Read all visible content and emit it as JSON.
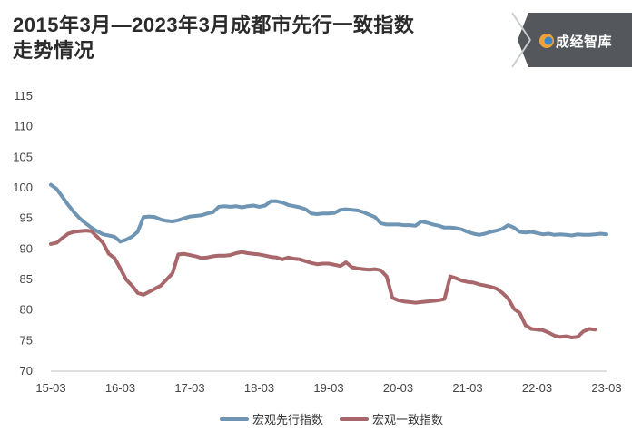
{
  "title_line1": "2015年3月—2023年3月成都市先行一致指数",
  "title_line2": "走势情况",
  "logo_text": "成经智库",
  "colors": {
    "leading": "#6e95b3",
    "coincident": "#a8676a",
    "logo_bg": "#54585c",
    "axis": "#bfbfbf"
  },
  "chart_data": {
    "type": "line",
    "title": "2015年3月—2023年3月成都市先行一致指数走势情况",
    "xlabel": "",
    "ylabel": "",
    "x_ticks": [
      "15-03",
      "16-03",
      "17-03",
      "18-03",
      "19-03",
      "20-03",
      "21-03",
      "22-03",
      "23-03"
    ],
    "y_ticks": [
      70,
      75,
      80,
      85,
      90,
      95,
      100,
      105,
      110,
      115
    ],
    "ylim": [
      70,
      115
    ],
    "xlim": [
      0,
      96
    ],
    "x_unit": "months since 2015-03",
    "grid": false,
    "legend_position": "bottom",
    "series": [
      {
        "name": "宏观先行指数",
        "color": "#6e95b3",
        "points": [
          [
            0,
            100.5
          ],
          [
            1,
            99.8
          ],
          [
            2,
            98.5
          ],
          [
            3,
            97.2
          ],
          [
            4,
            96.0
          ],
          [
            5,
            95.0
          ],
          [
            6,
            94.2
          ],
          [
            7,
            93.5
          ],
          [
            8,
            92.9
          ],
          [
            9,
            92.4
          ],
          [
            10,
            92.2
          ],
          [
            11,
            92.0
          ],
          [
            12,
            91.2
          ],
          [
            13,
            91.5
          ],
          [
            14,
            92.0
          ],
          [
            15,
            92.8
          ],
          [
            16,
            95.2
          ],
          [
            17,
            95.3
          ],
          [
            18,
            95.2
          ],
          [
            19,
            94.8
          ],
          [
            20,
            94.6
          ],
          [
            21,
            94.5
          ],
          [
            22,
            94.7
          ],
          [
            23,
            95.0
          ],
          [
            24,
            95.3
          ],
          [
            25,
            95.4
          ],
          [
            26,
            95.5
          ],
          [
            27,
            95.8
          ],
          [
            28,
            96.0
          ],
          [
            29,
            96.9
          ],
          [
            30,
            97.0
          ],
          [
            31,
            96.9
          ],
          [
            32,
            97.0
          ],
          [
            33,
            96.8
          ],
          [
            34,
            97.0
          ],
          [
            35,
            97.1
          ],
          [
            36,
            96.9
          ],
          [
            37,
            97.1
          ],
          [
            38,
            97.8
          ],
          [
            39,
            97.8
          ],
          [
            40,
            97.6
          ],
          [
            41,
            97.2
          ],
          [
            42,
            97.0
          ],
          [
            43,
            96.8
          ],
          [
            44,
            96.5
          ],
          [
            45,
            95.8
          ],
          [
            46,
            95.7
          ],
          [
            47,
            95.8
          ],
          [
            48,
            95.8
          ],
          [
            49,
            95.9
          ],
          [
            50,
            96.4
          ],
          [
            51,
            96.5
          ],
          [
            52,
            96.4
          ],
          [
            53,
            96.3
          ],
          [
            54,
            96.0
          ],
          [
            55,
            95.6
          ],
          [
            56,
            95.2
          ],
          [
            57,
            94.2
          ],
          [
            58,
            94.0
          ],
          [
            59,
            94.0
          ],
          [
            60,
            94.0
          ],
          [
            61,
            93.9
          ],
          [
            62,
            93.9
          ],
          [
            63,
            93.8
          ],
          [
            64,
            94.5
          ],
          [
            65,
            94.3
          ],
          [
            66,
            94.0
          ],
          [
            67,
            93.8
          ],
          [
            68,
            93.5
          ],
          [
            69,
            93.5
          ],
          [
            70,
            93.4
          ],
          [
            71,
            93.2
          ],
          [
            72,
            92.8
          ],
          [
            73,
            92.5
          ],
          [
            74,
            92.3
          ],
          [
            75,
            92.5
          ],
          [
            76,
            92.8
          ],
          [
            77,
            93.0
          ],
          [
            78,
            93.3
          ],
          [
            79,
            93.9
          ],
          [
            80,
            93.5
          ],
          [
            81,
            92.8
          ],
          [
            82,
            92.7
          ],
          [
            83,
            92.8
          ],
          [
            84,
            92.6
          ],
          [
            85,
            92.4
          ],
          [
            86,
            92.5
          ],
          [
            87,
            92.3
          ],
          [
            88,
            92.4
          ],
          [
            89,
            92.3
          ],
          [
            90,
            92.2
          ],
          [
            91,
            92.4
          ],
          [
            92,
            92.3
          ],
          [
            93,
            92.3
          ],
          [
            94,
            92.4
          ],
          [
            95,
            92.5
          ],
          [
            96,
            92.4
          ]
        ]
      },
      {
        "name": "宏观一致指数",
        "color": "#a8676a",
        "points": [
          [
            0,
            90.8
          ],
          [
            1,
            91.0
          ],
          [
            2,
            91.8
          ],
          [
            3,
            92.5
          ],
          [
            4,
            92.8
          ],
          [
            5,
            92.9
          ],
          [
            6,
            93.0
          ],
          [
            7,
            92.9
          ],
          [
            8,
            92.0
          ],
          [
            9,
            91.0
          ],
          [
            10,
            89.2
          ],
          [
            11,
            88.5
          ],
          [
            12,
            86.8
          ],
          [
            13,
            85.0
          ],
          [
            14,
            84.0
          ],
          [
            15,
            82.8
          ],
          [
            16,
            82.5
          ],
          [
            17,
            83.0
          ],
          [
            18,
            83.5
          ],
          [
            19,
            84.0
          ],
          [
            20,
            85.0
          ],
          [
            21,
            86.0
          ],
          [
            22,
            89.1
          ],
          [
            23,
            89.2
          ],
          [
            24,
            89.0
          ],
          [
            25,
            88.8
          ],
          [
            26,
            88.5
          ],
          [
            27,
            88.6
          ],
          [
            28,
            88.8
          ],
          [
            29,
            88.9
          ],
          [
            30,
            88.9
          ],
          [
            31,
            89.0
          ],
          [
            32,
            89.3
          ],
          [
            33,
            89.5
          ],
          [
            34,
            89.3
          ],
          [
            35,
            89.2
          ],
          [
            36,
            89.1
          ],
          [
            37,
            88.9
          ],
          [
            38,
            88.7
          ],
          [
            39,
            88.6
          ],
          [
            40,
            88.3
          ],
          [
            41,
            88.6
          ],
          [
            42,
            88.4
          ],
          [
            43,
            88.3
          ],
          [
            44,
            88.0
          ],
          [
            45,
            87.7
          ],
          [
            46,
            87.5
          ],
          [
            47,
            87.6
          ],
          [
            48,
            87.6
          ],
          [
            49,
            87.4
          ],
          [
            50,
            87.2
          ],
          [
            51,
            87.8
          ],
          [
            52,
            87.0
          ],
          [
            53,
            86.8
          ],
          [
            54,
            86.7
          ],
          [
            55,
            86.6
          ],
          [
            56,
            86.7
          ],
          [
            57,
            86.5
          ],
          [
            58,
            85.5
          ],
          [
            59,
            82.0
          ],
          [
            60,
            81.6
          ],
          [
            61,
            81.4
          ],
          [
            62,
            81.3
          ],
          [
            63,
            81.2
          ],
          [
            64,
            81.3
          ],
          [
            65,
            81.4
          ],
          [
            66,
            81.5
          ],
          [
            67,
            81.6
          ],
          [
            68,
            81.8
          ],
          [
            69,
            85.5
          ],
          [
            70,
            85.2
          ],
          [
            71,
            84.8
          ],
          [
            72,
            84.6
          ],
          [
            73,
            84.5
          ],
          [
            74,
            84.2
          ],
          [
            75,
            84.0
          ],
          [
            76,
            83.8
          ],
          [
            77,
            83.5
          ],
          [
            78,
            82.8
          ],
          [
            79,
            81.9
          ],
          [
            80,
            80.2
          ],
          [
            81,
            79.5
          ],
          [
            82,
            77.5
          ],
          [
            83,
            76.9
          ],
          [
            84,
            76.8
          ],
          [
            85,
            76.7
          ],
          [
            86,
            76.3
          ],
          [
            87,
            75.8
          ],
          [
            88,
            75.6
          ],
          [
            89,
            75.7
          ],
          [
            90,
            75.5
          ],
          [
            91,
            75.6
          ],
          [
            92,
            76.5
          ],
          [
            93,
            76.9
          ],
          [
            94,
            76.8
          ]
        ]
      }
    ]
  }
}
